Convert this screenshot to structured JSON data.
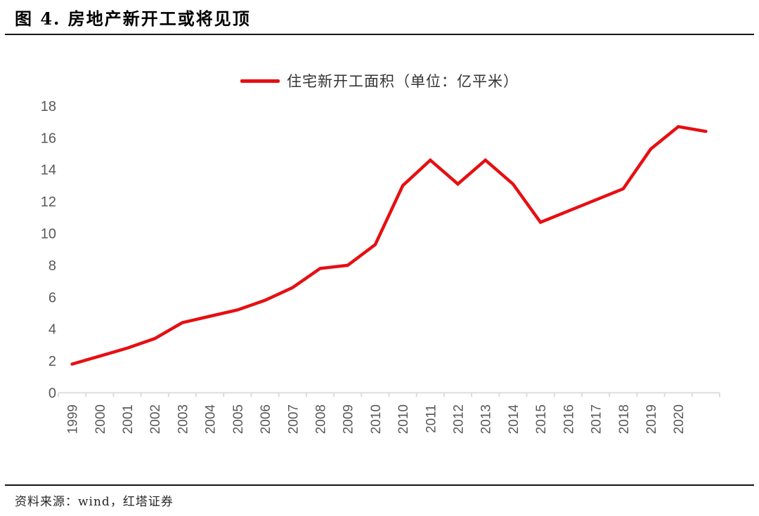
{
  "header": {
    "title": "图 4. 房地产新开工或将见顶"
  },
  "footer": {
    "source": "资料来源：wind，红塔证券"
  },
  "chart_data": {
    "type": "line",
    "title": "图 4. 房地产新开工或将见顶",
    "legend": "住宅新开工面积（单位：亿平米）",
    "legend_position": "top-center",
    "grid": false,
    "xlabel": "",
    "ylabel": "",
    "ylim": [
      0,
      18
    ],
    "yticks": [
      0,
      2,
      4,
      6,
      8,
      10,
      12,
      14,
      16,
      18
    ],
    "categories": [
      "1999",
      "2000",
      "2001",
      "2002",
      "2003",
      "2004",
      "2005",
      "2006",
      "2007",
      "2008",
      "2009",
      "2010",
      "2010",
      "2011",
      "2012",
      "2013",
      "2014",
      "2015",
      "2016",
      "2017",
      "2018",
      "2019",
      "2020",
      ""
    ],
    "series": [
      {
        "name": "住宅新开工面积（单位：亿平米）",
        "values": [
          1.8,
          2.3,
          2.8,
          3.4,
          4.4,
          4.8,
          5.2,
          5.8,
          6.6,
          7.8,
          8.0,
          9.3,
          13.0,
          14.6,
          13.1,
          14.6,
          13.1,
          10.7,
          11.4,
          12.1,
          12.8,
          15.3,
          16.7,
          16.4
        ]
      }
    ],
    "line_color": "#e60f12",
    "axis_color": "#d9d9d9",
    "tick_label_color": "#595959"
  }
}
